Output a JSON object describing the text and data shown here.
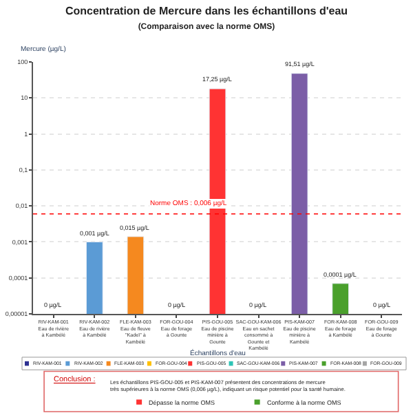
{
  "chart_data": {
    "type": "bar",
    "title": "Concentration de Mercure dans les échantillons d'eau",
    "subtitle": "(Comparaison avec la norme OMS)",
    "ylabel": "Mercure (µg/L)",
    "xlabel": "Échantillons d'eau",
    "categories": [
      "RIV-KAM-001\nEau de rivière\nà Kambélé",
      "RIV-KAM-002\nEau de rivière\nà Kambélé",
      "FLE-KAM-003\nEau de fleuve\n\"Kadeï\" à\nKambélé",
      "FOR-GOU-004\nEau de forage\nà Gounte",
      "PIS-GOU-005\nEau de piscine\nminière à\nGounte",
      "SAC-GOU-KAM-006\nEau en sachet\nconsommé à\nGounte et\nKambélé",
      "PIS-KAM-007\nEau de piscine\nminière à\nKambélé",
      "FOR-KAM-008\nEau de forage\nà Kambélé",
      "FOR-GOU-009\nEau de forage\nà Gounte"
    ],
    "series": [
      {
        "name": "RIV-KAM-001",
        "color": "#2e3192",
        "values": [
          null,
          null,
          null,
          null,
          null,
          null,
          null,
          null,
          null
        ]
      },
      {
        "name": "RIV-KAM-002",
        "color": "#5b9bd5",
        "values": [
          null,
          0.001,
          null,
          null,
          null,
          null,
          null,
          null,
          null
        ]
      },
      {
        "name": "FLE-KAM-003",
        "color": "#f5891f",
        "values": [
          null,
          null,
          0.0014,
          null,
          null,
          null,
          null,
          null,
          null
        ]
      },
      {
        "name": "FOR-GOU-004",
        "color": "#ffc000",
        "values": [
          null,
          null,
          null,
          null,
          null,
          null,
          null,
          null,
          null
        ]
      },
      {
        "name": "PIS-GOU-005",
        "color": "#ff3333",
        "values": [
          null,
          null,
          null,
          null,
          18,
          null,
          null,
          null,
          null
        ]
      },
      {
        "name": "SAC-GOU-KAM-006",
        "color": "#2ec4b6",
        "values": [
          null,
          null,
          null,
          null,
          null,
          null,
          null,
          null,
          null
        ]
      },
      {
        "name": "PIS-KAM-007",
        "color": "#7b5ea7",
        "values": [
          null,
          null,
          null,
          null,
          null,
          null,
          48,
          null,
          null
        ]
      },
      {
        "name": "FOR-KAM-008",
        "color": "#4aa02c",
        "values": [
          null,
          null,
          null,
          null,
          null,
          null,
          null,
          7e-05,
          null
        ]
      },
      {
        "name": "FOR-GOU-009",
        "color": "#a5a5a5",
        "values": [
          null,
          null,
          null,
          null,
          null,
          null,
          null,
          null,
          null
        ]
      }
    ],
    "value_labels": [
      "0 µg/L",
      "0,001 µg/L",
      "0,015 µg/L",
      "0 µg/L",
      "17,25 µg/L",
      "0 µg/L",
      "91,51 µg/L",
      "0,0001 µg/L",
      "0 µg/L"
    ],
    "log": true,
    "ylim": [
      1e-05,
      100
    ],
    "yticks": [
      {
        "value": 1e-05,
        "label": "0,00001"
      },
      {
        "value": 0.0001,
        "label": "0,0001"
      },
      {
        "value": 0.001,
        "label": "0,001"
      },
      {
        "value": 0.01,
        "label": "0,01"
      },
      {
        "value": 0.1,
        "label": "0,1"
      },
      1,
      10,
      100
    ],
    "grid": "y",
    "legend": "bottom",
    "ref_lines": [
      {
        "axis": "y",
        "value": 0.006,
        "label": "Norme OMS : 0,006 µg/L",
        "color": "#ff0000",
        "line_style": "dotted"
      }
    ],
    "annotations": [
      "Conclusion :",
      "Les échantillons PIS-GOU-005 et PIS-KAM-007 présentent des concentrations de mercure\ntrès supérieures à la norme OMS (0,006 µg/L), indiquant un risque potentiel pour la santé humaine.",
      "Dépasse la norme OMS",
      "Conforme à la norme OMS"
    ]
  }
}
